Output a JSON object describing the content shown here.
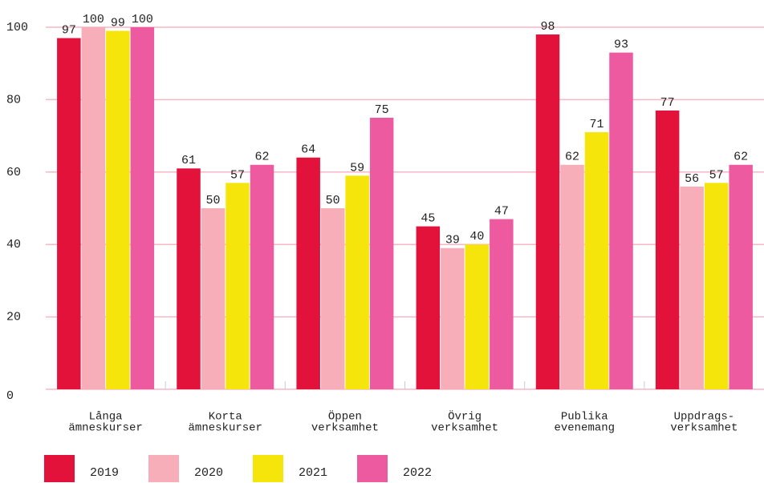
{
  "chart_data": {
    "type": "bar",
    "categories": [
      [
        "Långa",
        "ämneskurser"
      ],
      [
        "Korta",
        "ämneskurser"
      ],
      [
        "Öppen",
        "verksamhet"
      ],
      [
        "Övrig",
        "verksamhet"
      ],
      [
        "Publika",
        "evenemang"
      ],
      [
        "Uppdrags-",
        "verksamhet"
      ]
    ],
    "series": [
      {
        "name": "2019",
        "color": "#e3123b",
        "values": [
          97,
          61,
          64,
          45,
          98,
          77
        ]
      },
      {
        "name": "2020",
        "color": "#f7aeb9",
        "values": [
          100,
          50,
          50,
          39,
          62,
          56
        ]
      },
      {
        "name": "2021",
        "color": "#f5e50a",
        "values": [
          99,
          57,
          59,
          40,
          71,
          57
        ]
      },
      {
        "name": "2022",
        "color": "#ee5aa0",
        "values": [
          100,
          62,
          75,
          47,
          93,
          62
        ]
      }
    ],
    "ylim": [
      0,
      100
    ],
    "yticks": [
      0,
      20,
      40,
      60,
      80,
      100
    ],
    "grid": true,
    "legend": "bottom"
  }
}
